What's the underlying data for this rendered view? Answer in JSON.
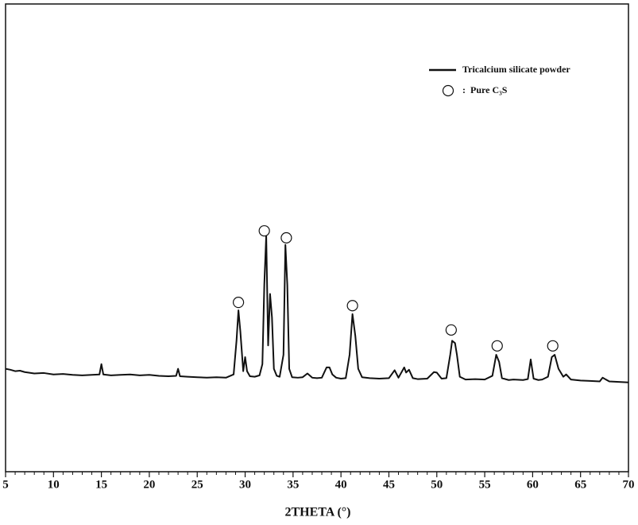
{
  "chart_data": {
    "type": "line",
    "x_label": "2THETA (°)",
    "xlim": [
      5,
      70
    ],
    "ylim": [
      0,
      100
    ],
    "xticks": [
      5,
      10,
      15,
      20,
      25,
      30,
      35,
      40,
      45,
      50,
      55,
      60,
      65,
      70
    ],
    "legend_separator": ":",
    "legend": "upper right",
    "series": [
      {
        "name": "Tricalcium silicate powder",
        "type": "line",
        "color": "#111111",
        "x": [
          5,
          5.5,
          6,
          6.5,
          7,
          8,
          9,
          10,
          11,
          12,
          13,
          14,
          14.8,
          15,
          15.2,
          16,
          17,
          18,
          19,
          20,
          21,
          22,
          22.8,
          23,
          23.2,
          24,
          25,
          26,
          27,
          28,
          28.8,
          29.1,
          29.3,
          29.5,
          29.8,
          30.0,
          30.2,
          30.5,
          31,
          31.5,
          31.8,
          32.0,
          32.2,
          32.4,
          32.6,
          32.8,
          33.0,
          33.3,
          33.6,
          34.0,
          34.2,
          34.4,
          34.6,
          34.9,
          35.5,
          36,
          36.5,
          37,
          37.5,
          38,
          38.5,
          38.8,
          39.1,
          39.5,
          40,
          40.5,
          40.9,
          41.2,
          41.5,
          41.8,
          42.2,
          43,
          44,
          45,
          45.6,
          46,
          46.6,
          46.8,
          47.1,
          47.5,
          48,
          49,
          49.7,
          50,
          50.5,
          51,
          51.4,
          51.6,
          51.9,
          52.1,
          52.4,
          53,
          54,
          55,
          55.8,
          56.2,
          56.5,
          56.8,
          57.5,
          58,
          59,
          59.5,
          59.8,
          60.1,
          60.6,
          61,
          61.6,
          62,
          62.3,
          62.7,
          63.2,
          63.5,
          64,
          65,
          66,
          67,
          67.3,
          68,
          69,
          70
        ],
        "values": [
          22,
          21.8,
          21.5,
          21.6,
          21.3,
          21.0,
          21.1,
          20.8,
          20.9,
          20.7,
          20.6,
          20.7,
          20.8,
          23,
          20.8,
          20.6,
          20.7,
          20.8,
          20.6,
          20.7,
          20.5,
          20.4,
          20.5,
          22,
          20.4,
          20.3,
          20.2,
          20.1,
          20.2,
          20.1,
          20.8,
          28,
          34.5,
          30,
          21.5,
          24.5,
          21.5,
          20.4,
          20.3,
          20.6,
          23,
          40,
          50.5,
          27,
          38,
          33,
          22,
          20.5,
          20.3,
          25,
          48.5,
          40,
          22,
          20.2,
          20.1,
          20.2,
          21,
          20.1,
          20,
          20.1,
          22.3,
          22.3,
          20.8,
          20.1,
          19.9,
          20,
          25,
          33.7,
          29,
          22,
          20.2,
          20,
          19.9,
          20,
          21.7,
          20.1,
          22.3,
          21.2,
          21.8,
          20,
          19.8,
          19.9,
          21.3,
          21.2,
          19.9,
          20,
          25,
          28,
          27.5,
          25,
          20.3,
          19.7,
          19.8,
          19.7,
          20.5,
          25,
          23.5,
          20,
          19.6,
          19.7,
          19.6,
          19.8,
          24,
          19.9,
          19.6,
          19.7,
          20.3,
          24.5,
          25,
          22,
          20.3,
          20.8,
          19.7,
          19.5,
          19.4,
          19.3,
          20.1,
          19.3,
          19.2,
          19.1
        ]
      },
      {
        "name": "Pure C₃S",
        "type": "scatter",
        "color": "#111111",
        "marker": "open-circle",
        "x": [
          29.3,
          32.0,
          34.3,
          41.2,
          51.5,
          56.3,
          62.1
        ],
        "values": [
          36.2,
          51.5,
          50,
          35.5,
          30.3,
          26.9,
          26.9
        ]
      }
    ]
  }
}
